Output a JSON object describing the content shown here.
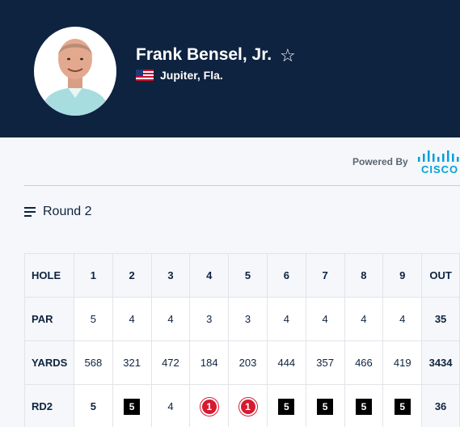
{
  "player": {
    "name": "Frank Bensel, Jr.",
    "location": "Jupiter, Fla.",
    "flag_icon": "us-flag-icon",
    "favorite_icon": "star-outline-icon"
  },
  "sponsor": {
    "powered_by": "Powered By",
    "brand": "CISCO",
    "brand_color": "#049fd9"
  },
  "round_selector": {
    "label": "Round 2",
    "icon": "menu-icon"
  },
  "scorecard": {
    "hole_label": "HOLE",
    "par_label": "PAR",
    "yards_label": "YARDS",
    "round_label": "RD2",
    "out_label": "OUT",
    "holes": [
      "1",
      "2",
      "3",
      "4",
      "5",
      "6",
      "7",
      "8",
      "9"
    ],
    "par": [
      "5",
      "4",
      "4",
      "3",
      "3",
      "4",
      "4",
      "4",
      "4"
    ],
    "par_out": "35",
    "yards": [
      "568",
      "321",
      "472",
      "184",
      "203",
      "444",
      "357",
      "466",
      "419"
    ],
    "yards_out": "3434",
    "scores": [
      "5",
      "5",
      "4",
      "1",
      "1",
      "5",
      "5",
      "5",
      "5"
    ],
    "score_types": [
      "par",
      "bogey",
      "par",
      "hole-in-one",
      "hole-in-one",
      "bogey",
      "bogey",
      "bogey",
      "bogey"
    ],
    "scores_out": "36"
  },
  "colors": {
    "header_bg": "#0e2340",
    "bogey": "#000000",
    "ace": "#d71a2f"
  }
}
